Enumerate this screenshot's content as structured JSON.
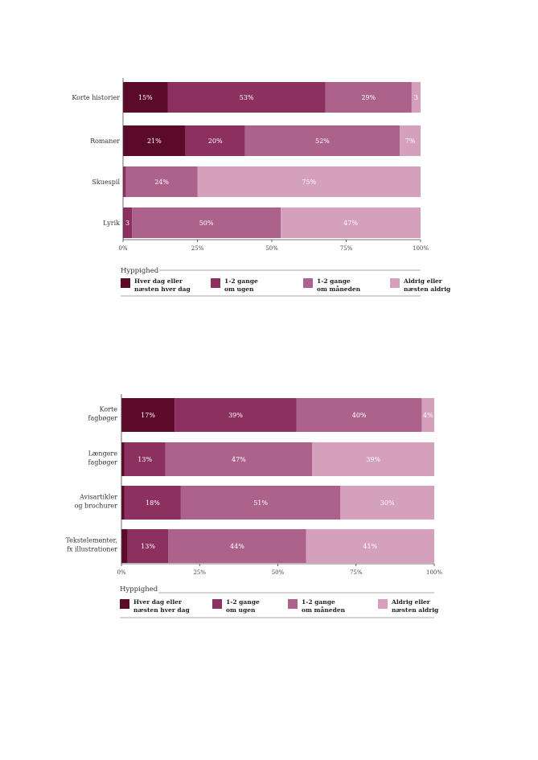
{
  "chart_data": [
    {
      "type": "bar",
      "orientation": "horizontal",
      "stacked": true,
      "categories": [
        "Korte historier",
        "Romaner",
        "Skuespil",
        "Lyrik"
      ],
      "series": [
        {
          "name": "Hver dag eller næsten hver dag",
          "values": [
            15,
            21,
            0,
            0
          ],
          "labels": [
            "15%",
            "21%",
            "",
            ""
          ]
        },
        {
          "name": "1-2 gange om ugen",
          "values": [
            53,
            20,
            1,
            3
          ],
          "labels": [
            "53%",
            "20%",
            "",
            "3"
          ]
        },
        {
          "name": "1-2 gange om måneden",
          "values": [
            29,
            52,
            24,
            50
          ],
          "labels": [
            "29%",
            "52%",
            "24%",
            "50%"
          ]
        },
        {
          "name": "Aldrig eller næsten aldrig",
          "values": [
            3,
            7,
            75,
            47
          ],
          "labels": [
            "3",
            "7%",
            "75%",
            "47%"
          ]
        }
      ],
      "xticks": [
        "0%",
        "25%",
        "50%",
        "75%",
        "100%"
      ],
      "xlim": [
        0,
        100
      ],
      "legend_title": "Hyppighed",
      "legend": [
        {
          "line1": "Hver dag eller",
          "line2": "næsten hver dag"
        },
        {
          "line1": "1-2 gange",
          "line2": "om ugen"
        },
        {
          "line1": "1-2 gange",
          "line2": "om måneden"
        },
        {
          "line1": "Aldrig eller",
          "line2": "næsten aldrig"
        }
      ]
    },
    {
      "type": "bar",
      "orientation": "horizontal",
      "stacked": true,
      "categories": [
        "Korte fagbøger",
        "Længere fagbøger",
        "Avisartikler og brochurer",
        "Tekstelementer, fx illustrationer"
      ],
      "category_lines": [
        [
          "Korte",
          "fagbøger"
        ],
        [
          "Længere",
          "fagbøger"
        ],
        [
          "Avisartikler",
          "og brochurer"
        ],
        [
          "Tekstelementer,",
          "fx illustrationer"
        ]
      ],
      "series": [
        {
          "name": "Hver dag eller næsten hver dag",
          "values": [
            17,
            1,
            1,
            2
          ],
          "labels": [
            "17%",
            "",
            "",
            ""
          ]
        },
        {
          "name": "1-2 gange om ugen",
          "values": [
            39,
            13,
            18,
            13
          ],
          "labels": [
            "39%",
            "13%",
            "18%",
            "13%"
          ]
        },
        {
          "name": "1-2 gange om måneden",
          "values": [
            40,
            47,
            51,
            44
          ],
          "labels": [
            "40%",
            "47%",
            "51%",
            "44%"
          ]
        },
        {
          "name": "Aldrig eller næsten aldrig",
          "values": [
            4,
            39,
            30,
            41
          ],
          "labels": [
            "4%",
            "39%",
            "30%",
            "41%"
          ]
        }
      ],
      "xticks": [
        "0%",
        "25%",
        "50%",
        "75%",
        "100%"
      ],
      "xlim": [
        0,
        100
      ],
      "legend_title": "Hyppighed",
      "legend": [
        {
          "line1": "Hver dag eller",
          "line2": "næsten hver dag"
        },
        {
          "line1": "1-2 gange",
          "line2": "om ugen"
        },
        {
          "line1": "1-2 gange",
          "line2": "om måneden"
        },
        {
          "line1": "Aldrig eller",
          "line2": "næsten aldrig"
        }
      ]
    }
  ],
  "colors": [
    "#5c0a2a",
    "#8c3060",
    "#ad628c",
    "#d4a0bc"
  ]
}
